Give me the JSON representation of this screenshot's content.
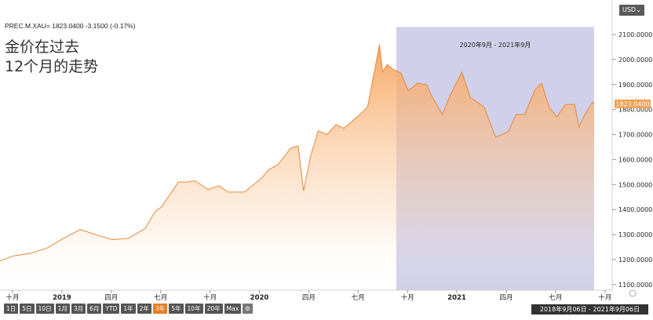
{
  "ticker_line": "PREC.M.XAU= 1823.0400  -3.1500 (-0.17%)",
  "title_lines": [
    "金价在过去",
    "12个月的走势"
  ],
  "currency_label": "USD⌄",
  "period_buttons": [
    "1日",
    "5日",
    "10日",
    "1月",
    "3月",
    "6月",
    "YTD",
    "1年",
    "2年",
    "3年",
    "5年",
    "10年",
    "20年",
    "Max"
  ],
  "active_period": "3年",
  "date_range": "2018年9月06日 - 2021年9月06日",
  "colors": {
    "line": "#e8893a",
    "area_top": "#f7a35c",
    "highlight": "#c8c8e6",
    "price_tag": "#f0a050",
    "active_button": "#e67e22"
  },
  "chart_data": {
    "type": "area",
    "x_tick_labels": [
      "十月",
      "2019",
      "四月",
      "七月",
      "十月",
      "2020",
      "四月",
      "七月",
      "十月",
      "2021",
      "四月",
      "七月",
      "十月"
    ],
    "y_ticks": [
      "1100.0000",
      "1200.0000",
      "1300.0000",
      "1400.0000",
      "1500.0000",
      "1600.0000",
      "1700.0000",
      "1800.0000",
      "1900.0000",
      "2000.0000",
      "2100.0000"
    ],
    "ylim": [
      1100,
      2130
    ],
    "last_value": "1823.0400",
    "highlight_label": "2020年9月 - 2021年9月",
    "highlight_range": [
      "2020-09-06",
      "2021-09-06"
    ],
    "series": [
      {
        "x": [
          "2018-09-06",
          "2018-10-01",
          "2018-11-01",
          "2018-12-01",
          "2019-01-01",
          "2019-02-01",
          "2019-03-01",
          "2019-04-01",
          "2019-05-01",
          "2019-06-01",
          "2019-06-20",
          "2019-07-01",
          "2019-08-01",
          "2019-08-15",
          "2019-09-01",
          "2019-09-25",
          "2019-10-15",
          "2019-11-01",
          "2019-12-01",
          "2020-01-01",
          "2020-01-15",
          "2020-02-01",
          "2020-02-24",
          "2020-03-09",
          "2020-03-19",
          "2020-04-01",
          "2020-04-15",
          "2020-05-01",
          "2020-05-18",
          "2020-06-01",
          "2020-07-01",
          "2020-07-15",
          "2020-08-06",
          "2020-08-12",
          "2020-08-20",
          "2020-09-01",
          "2020-09-15",
          "2020-09-28",
          "2020-10-15",
          "2020-11-01",
          "2020-11-09",
          "2020-11-30",
          "2020-12-15",
          "2021-01-05",
          "2021-01-20",
          "2021-02-15",
          "2021-03-08",
          "2021-03-31",
          "2021-04-15",
          "2021-05-01",
          "2021-05-20",
          "2021-06-01",
          "2021-06-15",
          "2021-06-29",
          "2021-07-15",
          "2021-08-01",
          "2021-08-09",
          "2021-08-20",
          "2021-09-03",
          "2021-09-06"
        ],
        "values": [
          1195,
          1215,
          1225,
          1245,
          1285,
          1320,
          1300,
          1280,
          1285,
          1325,
          1395,
          1410,
          1510,
          1510,
          1515,
          1480,
          1495,
          1470,
          1470,
          1525,
          1560,
          1580,
          1645,
          1655,
          1475,
          1615,
          1715,
          1700,
          1740,
          1725,
          1780,
          1810,
          2060,
          1950,
          1980,
          1960,
          1945,
          1875,
          1905,
          1900,
          1860,
          1780,
          1860,
          1950,
          1850,
          1810,
          1690,
          1710,
          1780,
          1780,
          1880,
          1905,
          1810,
          1770,
          1820,
          1820,
          1730,
          1780,
          1830,
          1823
        ]
      }
    ]
  }
}
